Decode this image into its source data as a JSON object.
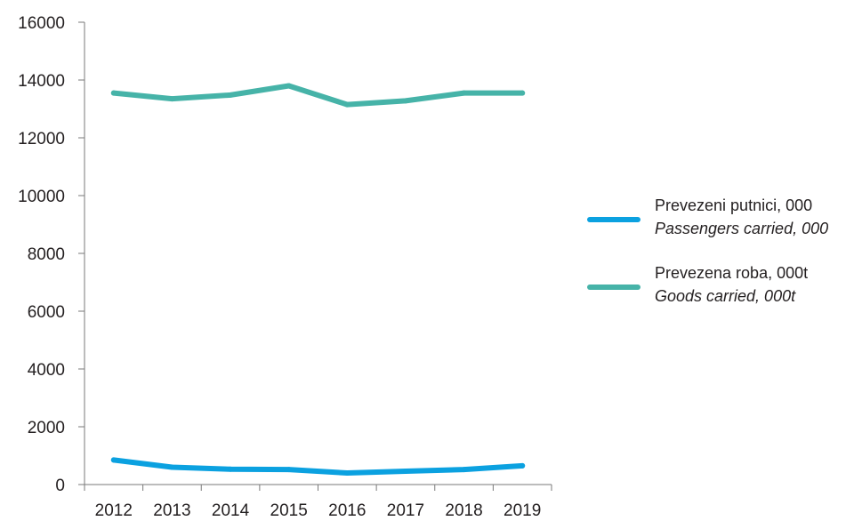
{
  "chart_data": {
    "type": "line",
    "title": "",
    "xlabel": "",
    "ylabel": "",
    "categories": [
      "2012",
      "2013",
      "2014",
      "2015",
      "2016",
      "2017",
      "2018",
      "2019"
    ],
    "ylim": [
      0,
      16000
    ],
    "yticks": [
      "0",
      "2000",
      "4000",
      "6000",
      "8000",
      "10000",
      "12000",
      "14000",
      "16000"
    ],
    "grid": false,
    "legend_position": "right",
    "series": [
      {
        "name": "Prevezeni putnici, 000",
        "name_secondary": "Passengers carried, 000",
        "color": "#0ba1e0",
        "values": [
          850,
          600,
          530,
          520,
          400,
          460,
          520,
          650
        ]
      },
      {
        "name": "Prevezena roba, 000t",
        "name_secondary": "Goods carried, 000t",
        "color": "#46b3a8",
        "values": [
          13550,
          13350,
          13480,
          13800,
          13150,
          13280,
          13550,
          13550
        ]
      }
    ]
  }
}
